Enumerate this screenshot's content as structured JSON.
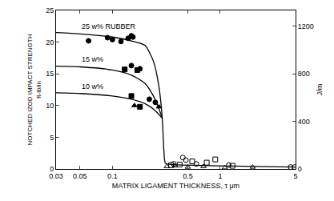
{
  "chart_data": {
    "type": "scatter",
    "xlabel": "MATRIX LIGAMENT THICKNESS, τ μm",
    "ylabel": [
      "NOTCHED IZOD IMPACT STRENGTH",
      "ft-lb/in"
    ],
    "y2label": "J/m",
    "log": "x",
    "grid": false,
    "color": "#000000",
    "xlim": [
      0.03,
      5
    ],
    "xticks": [
      0.03,
      0.05,
      0.1,
      0.5,
      1,
      5
    ],
    "ylim": [
      0,
      25
    ],
    "yticks": [
      0,
      5,
      10,
      15,
      20,
      25
    ],
    "y2lim": [
      0,
      1334
    ],
    "y2ticks": [
      0,
      400,
      800,
      1200
    ],
    "series": [
      {
        "name": "25 w% RUBBER",
        "type": "line",
        "x": [
          0.03,
          0.05,
          0.1,
          0.15,
          0.2,
          0.24,
          0.27,
          0.29,
          0.3,
          0.31,
          0.35,
          1,
          5
        ],
        "values": [
          21.5,
          21.3,
          20.8,
          20.2,
          19.5,
          17,
          13,
          8,
          3,
          0.9,
          0.7,
          0.5,
          0.3
        ]
      },
      {
        "name": "15 w%",
        "type": "line",
        "x": [
          0.03,
          0.05,
          0.1,
          0.15,
          0.2,
          0.24,
          0.27,
          0.29
        ],
        "values": [
          16.2,
          16.1,
          15.6,
          14.8,
          13.5,
          11.5,
          9.5,
          8
        ]
      },
      {
        "name": "10 w%",
        "type": "line",
        "x": [
          0.03,
          0.05,
          0.1,
          0.15,
          0.2,
          0.25,
          0.29
        ],
        "values": [
          12,
          11.9,
          11.5,
          11,
          10.3,
          9.2,
          8
        ]
      },
      {
        "type": "scatter",
        "marker": "circle",
        "x": [
          0.06,
          0.09,
          0.1,
          0.12,
          0.14,
          0.15,
          0.155,
          0.15,
          0.18,
          0.22,
          0.25
        ],
        "values": [
          20.2,
          20.7,
          20.4,
          20.1,
          20.6,
          21,
          20.8,
          16.3,
          15.8,
          11,
          10.5
        ]
      },
      {
        "type": "scatter",
        "marker": "square",
        "x": [
          0.13,
          0.17,
          0.15,
          0.18
        ],
        "values": [
          15.7,
          15.6,
          11.5,
          9.8
        ]
      },
      {
        "type": "scatter",
        "marker": "triangle-up",
        "x": [
          0.16,
          0.27
        ],
        "values": [
          10,
          9.8
        ]
      },
      {
        "type": "scatter",
        "marker": "circle-open",
        "x": [
          0.37,
          0.45,
          0.48,
          0.6,
          1.2,
          4.5,
          4.9
        ],
        "values": [
          0.8,
          1.8,
          1.4,
          0.8,
          0.6,
          0.3,
          0.3
        ]
      },
      {
        "type": "scatter",
        "marker": "square-open",
        "x": [
          0.35,
          0.42,
          0.55,
          0.75,
          0.9,
          1.3
        ],
        "values": [
          0.6,
          0.7,
          1.2,
          1,
          1.5,
          0.5
        ]
      },
      {
        "type": "scatter",
        "marker": "triangle-up-open",
        "x": [
          0.32,
          0.38,
          0.5,
          0.7,
          1.1,
          2
        ],
        "values": [
          0.4,
          0.5,
          0.3,
          0.4,
          0.2,
          0.3
        ]
      }
    ]
  }
}
